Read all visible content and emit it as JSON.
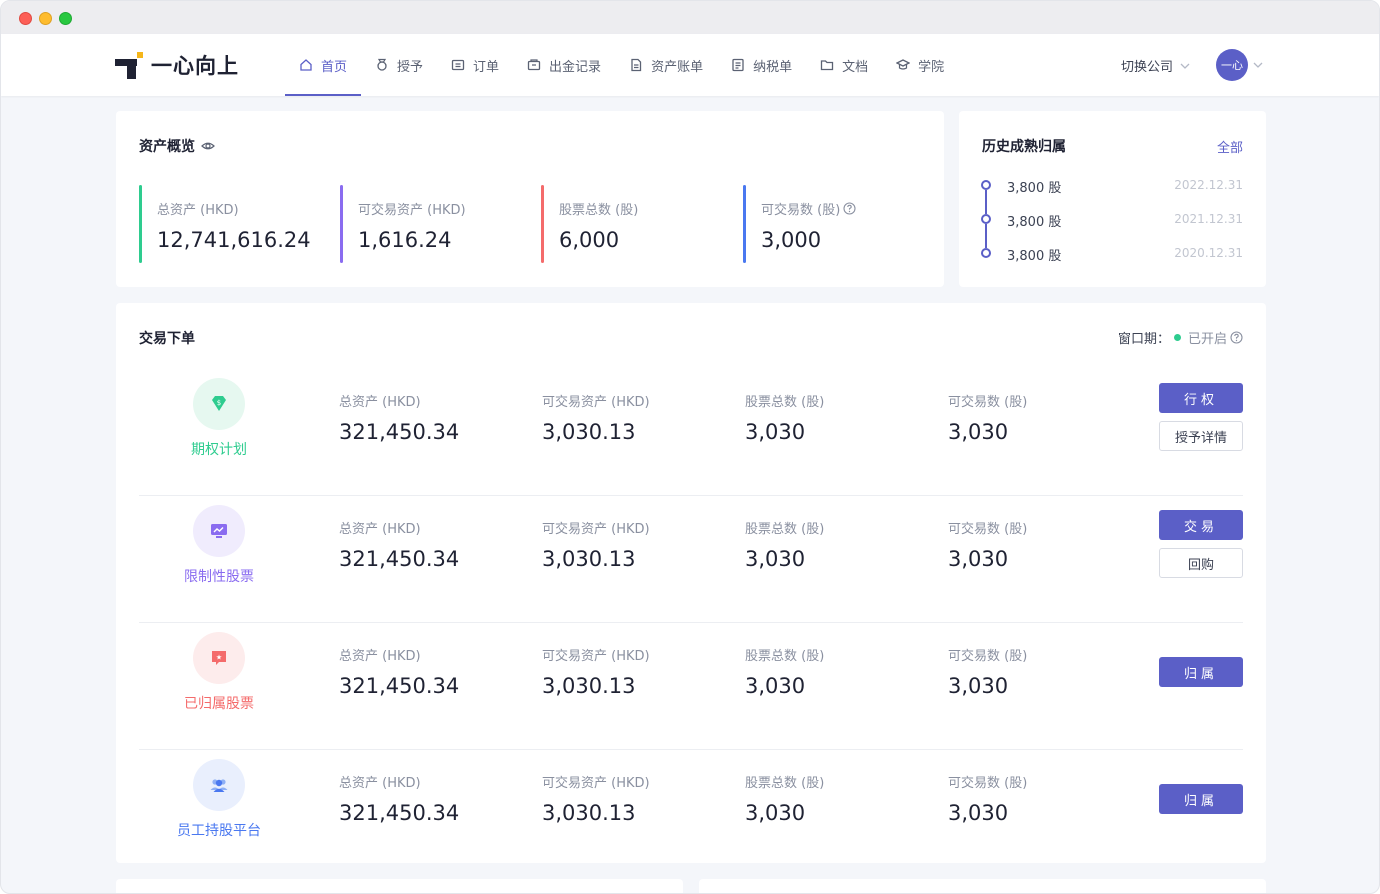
{
  "brand": {
    "name": "一心向上",
    "colors": {
      "primary": "#5b5fc7",
      "green": "#2ecc8f",
      "purple": "#8a6cf0",
      "red": "#f46b6b",
      "blue": "#4a78f0"
    }
  },
  "nav": {
    "items": [
      {
        "label": "首页",
        "icon": "home-icon"
      },
      {
        "label": "授予",
        "icon": "medal-icon"
      },
      {
        "label": "订单",
        "icon": "order-icon"
      },
      {
        "label": "出金记录",
        "icon": "wallet-icon"
      },
      {
        "label": "资产账单",
        "icon": "bill-icon"
      },
      {
        "label": "纳税单",
        "icon": "tax-icon"
      },
      {
        "label": "文档",
        "icon": "folder-icon"
      },
      {
        "label": "学院",
        "icon": "academy-icon"
      }
    ],
    "active_index": 0,
    "switch_company": "切换公司",
    "avatar_text": "一心"
  },
  "overview": {
    "title": "资产概览",
    "stats": [
      {
        "label": "总资产 (HKD)",
        "value": "12,741,616.24",
        "color": "#2ecc8f"
      },
      {
        "label": "可交易资产 (HKD)",
        "value": "1,616.24",
        "color": "#8a6cf0"
      },
      {
        "label": "股票总数 (股)",
        "value": "6,000",
        "color": "#f46b6b"
      },
      {
        "label": "可交易数 (股)",
        "value": "3,000",
        "color": "#4a78f0"
      }
    ]
  },
  "history": {
    "title": "历史成熟归属",
    "all_link": "全部",
    "items": [
      {
        "shares": "3,800 股",
        "date": "2022.12.31"
      },
      {
        "shares": "3,800 股",
        "date": "2021.12.31"
      },
      {
        "shares": "3,800 股",
        "date": "2020.12.31"
      }
    ]
  },
  "trade": {
    "title": "交易下单",
    "window_label": "窗口期：",
    "window_status": "已开启",
    "labels": [
      "总资产 (HKD)",
      "可交易资产 (HKD)",
      "股票总数 (股)",
      "可交易数 (股)"
    ],
    "rows": [
      {
        "name": "期权计划",
        "icon": "diamond-icon",
        "color": "#2ecc8f",
        "bg": "#e6f8f0",
        "values": [
          "321,450.34",
          "3,030.13",
          "3,030",
          "3,030"
        ],
        "primary": "行权",
        "secondary": "授予详情"
      },
      {
        "name": "限制性股票",
        "icon": "monitor-chart-icon",
        "color": "#8a6cf0",
        "bg": "#f0ecfd",
        "values": [
          "321,450.34",
          "3,030.13",
          "3,030",
          "3,030"
        ],
        "primary": "交易",
        "secondary": "回购"
      },
      {
        "name": "已归属股票",
        "icon": "flag-star-icon",
        "color": "#f46b6b",
        "bg": "#fdecec",
        "values": [
          "321,450.34",
          "3,030.13",
          "3,030",
          "3,030"
        ],
        "primary": "归属",
        "secondary": ""
      },
      {
        "name": "员工持股平台",
        "icon": "people-icon",
        "color": "#4a78f0",
        "bg": "#e9effd",
        "values": [
          "321,450.34",
          "3,030.13",
          "3,030",
          "3,030"
        ],
        "primary": "归属",
        "secondary": ""
      }
    ]
  }
}
